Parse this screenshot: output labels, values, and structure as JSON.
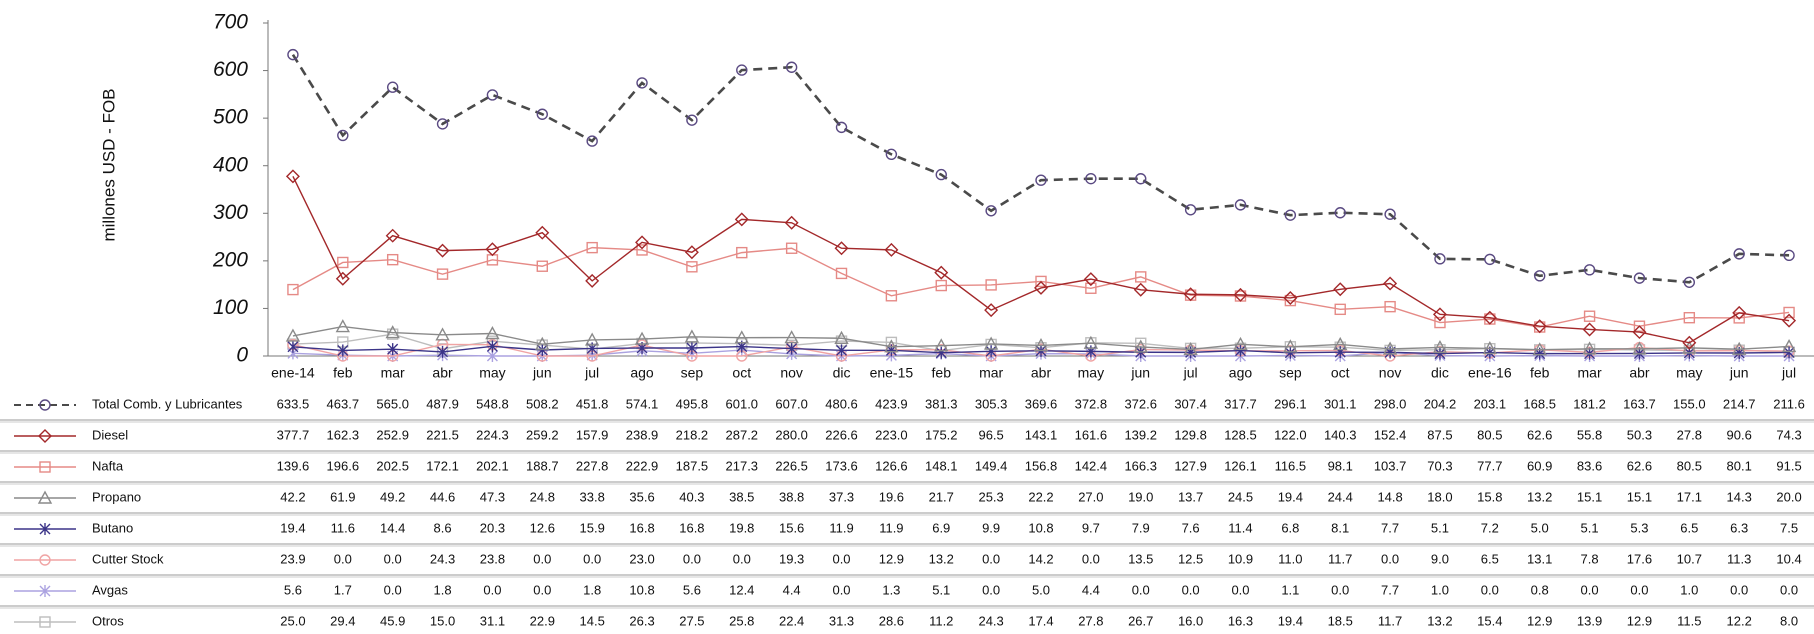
{
  "chart_data": {
    "type": "line",
    "y_label": "millones  USD - FOB",
    "categories": [
      "ene-14",
      "feb",
      "mar",
      "abr",
      "may",
      "jun",
      "jul",
      "ago",
      "sep",
      "oct",
      "nov",
      "dic",
      "ene-15",
      "feb",
      "mar",
      "abr",
      "may",
      "jun",
      "jul",
      "ago",
      "sep",
      "oct",
      "nov",
      "dic",
      "ene-16",
      "feb",
      "mar",
      "abr",
      "may",
      "jun",
      "jul"
    ],
    "ylim": [
      0,
      700
    ],
    "yticks": [
      0,
      100,
      200,
      300,
      400,
      500,
      600,
      700
    ],
    "series": [
      {
        "name": "Total Comb. y Lubricantes",
        "color": "#5a4a82",
        "line_color": "#4a4a4a",
        "dashed": true,
        "marker": "circle",
        "values": [
          633.5,
          463.7,
          565.0,
          487.9,
          548.8,
          508.2,
          451.8,
          574.1,
          495.8,
          601.0,
          607.0,
          480.6,
          423.9,
          381.3,
          305.3,
          369.6,
          372.8,
          372.6,
          307.4,
          317.7,
          296.1,
          301.1,
          298.0,
          204.2,
          203.1,
          168.5,
          181.2,
          163.7,
          155.0,
          214.7,
          211.6
        ],
        "value_labels": [
          "633.5",
          "463.7",
          "565.0",
          "487.9",
          "548.8",
          "508.2",
          "451.8",
          "574.1",
          "495.8",
          "601.0",
          "607.0",
          "480.6",
          "423.9",
          "381.3",
          "305.3",
          "369.6",
          "372.8",
          "372.6",
          "307.4",
          "317.7",
          "296.1",
          "301.1",
          "298.0",
          "204.2",
          "203.1",
          "168.5",
          "181.2",
          "163.7",
          "155.0",
          "214.7",
          "211.6"
        ]
      },
      {
        "name": "Diesel",
        "color": "#a3282a",
        "marker": "diamond",
        "values": [
          377.7,
          162.3,
          252.9,
          221.5,
          224.3,
          259.2,
          157.9,
          238.9,
          218.2,
          287.2,
          280.0,
          226.6,
          223.0,
          175.2,
          96.5,
          143.1,
          161.6,
          139.2,
          129.8,
          128.5,
          122.0,
          140.3,
          152.4,
          87.5,
          80.5,
          62.6,
          55.8,
          50.3,
          27.8,
          90.6,
          74.3
        ],
        "value_labels": [
          "377.7",
          "162.3",
          "252.9",
          "221.5",
          "224.3",
          "259.2",
          "157.9",
          "238.9",
          "218.2",
          "287.2",
          "280.0",
          "226.6",
          "223.0",
          "175.2",
          "96.5",
          "143.1",
          "161.6",
          "139.2",
          "129.8",
          "128.5",
          "122.0",
          "140.3",
          "152.4",
          "87.5",
          "80.5",
          "62.6",
          "55.8",
          "50.3",
          "27.8",
          "90.6",
          "74.3"
        ]
      },
      {
        "name": "Nafta",
        "color": "#e58a86",
        "marker": "square",
        "values": [
          139.6,
          196.6,
          202.5,
          172.1,
          202.1,
          188.7,
          227.8,
          222.9,
          187.5,
          217.3,
          226.5,
          173.6,
          126.6,
          148.1,
          149.4,
          156.8,
          142.4,
          166.3,
          127.9,
          126.1,
          116.5,
          98.1,
          103.7,
          70.3,
          77.7,
          60.9,
          83.6,
          62.6,
          80.5,
          80.1,
          91.5
        ],
        "value_labels": [
          "139.6",
          "196.6",
          "202.5",
          "172.1",
          "202.1",
          "188.7",
          "227.8",
          "222.9",
          "187.5",
          "217.3",
          "226.5",
          "173.6",
          "126.6",
          "148.1",
          "149.4",
          "156.8",
          "142.4",
          "166.3",
          "127.9",
          "126.1",
          "116.5",
          "98.1",
          "103.7",
          "70.3",
          "77.7",
          "60.9",
          "83.6",
          "62.6",
          "80.5",
          "80.1",
          "91.5"
        ]
      },
      {
        "name": "Propano",
        "color": "#8a8a8a",
        "marker": "triangle",
        "values": [
          42.2,
          61.9,
          49.2,
          44.6,
          47.3,
          24.8,
          33.8,
          35.6,
          40.3,
          38.5,
          38.8,
          37.3,
          19.6,
          21.7,
          25.3,
          22.2,
          27.0,
          19.0,
          13.7,
          24.5,
          19.4,
          24.4,
          14.8,
          18.0,
          15.8,
          13.2,
          15.1,
          15.1,
          17.1,
          14.3,
          20.0
        ],
        "value_labels": [
          "42.2",
          "61.9",
          "49.2",
          "44.6",
          "47.3",
          "24.8",
          "33.8",
          "35.6",
          "40.3",
          "38.5",
          "38.8",
          "37.3",
          "19.6",
          "21.7",
          "25.3",
          "22.2",
          "27.0",
          "19.0",
          "13.7",
          "24.5",
          "19.4",
          "24.4",
          "14.8",
          "18.0",
          "15.8",
          "13.2",
          "15.1",
          "15.1",
          "17.1",
          "14.3",
          "20.0"
        ]
      },
      {
        "name": "Butano",
        "color": "#3b3488",
        "marker": "star",
        "values": [
          19.4,
          11.6,
          14.4,
          8.6,
          20.3,
          12.6,
          15.9,
          16.8,
          16.8,
          19.8,
          15.6,
          11.9,
          11.9,
          6.9,
          9.9,
          10.8,
          9.7,
          7.9,
          7.6,
          11.4,
          6.8,
          8.1,
          7.7,
          5.1,
          7.2,
          5.0,
          5.1,
          5.3,
          6.5,
          6.3,
          7.5
        ],
        "value_labels": [
          "19.4",
          "11.6",
          "14.4",
          "8.6",
          "20.3",
          "12.6",
          "15.9",
          "16.8",
          "16.8",
          "19.8",
          "15.6",
          "11.9",
          "11.9",
          "6.9",
          "9.9",
          "10.8",
          "9.7",
          "7.9",
          "7.6",
          "11.4",
          "6.8",
          "8.1",
          "7.7",
          "5.1",
          "7.2",
          "5.0",
          "5.1",
          "5.3",
          "6.5",
          "6.3",
          "7.5"
        ]
      },
      {
        "name": "Cutter Stock",
        "color": "#f0a4a4",
        "marker": "circle",
        "values": [
          23.9,
          0.0,
          0.0,
          24.3,
          23.8,
          0.0,
          0.0,
          23.0,
          0.0,
          0.0,
          19.3,
          0.0,
          12.9,
          13.2,
          0.0,
          14.2,
          0.0,
          13.5,
          12.5,
          10.9,
          11.0,
          11.7,
          0.0,
          9.0,
          6.5,
          13.1,
          7.8,
          17.6,
          10.7,
          11.3,
          10.4
        ],
        "value_labels": [
          "23.9",
          "0.0",
          "0.0",
          "24.3",
          "23.8",
          "0.0",
          "0.0",
          "23.0",
          "0.0",
          "0.0",
          "19.3",
          "0.0",
          "12.9",
          "13.2",
          "0.0",
          "14.2",
          "0.0",
          "13.5",
          "12.5",
          "10.9",
          "11.0",
          "11.7",
          "0.0",
          "9.0",
          "6.5",
          "13.1",
          "7.8",
          "17.6",
          "10.7",
          "11.3",
          "10.4"
        ]
      },
      {
        "name": "Avgas",
        "color": "#aba2e0",
        "marker": "star",
        "values": [
          5.6,
          1.7,
          0.0,
          1.8,
          0.0,
          0.0,
          1.8,
          10.8,
          5.6,
          12.4,
          4.4,
          0.0,
          1.3,
          5.1,
          0.0,
          5.0,
          4.4,
          0.0,
          0.0,
          0.0,
          1.1,
          0.0,
          7.7,
          1.0,
          0.0,
          0.8,
          0.0,
          0.0,
          1.0,
          0.0,
          0.0
        ],
        "value_labels": [
          "5.6",
          "1.7",
          "0.0",
          "1.8",
          "0.0",
          "0.0",
          "1.8",
          "10.8",
          "5.6",
          "12.4",
          "4.4",
          "0.0",
          "1.3",
          "5.1",
          "0.0",
          "5.0",
          "4.4",
          "0.0",
          "0.0",
          "0.0",
          "1.1",
          "0.0",
          "7.7",
          "1.0",
          "0.0",
          "0.8",
          "0.0",
          "0.0",
          "1.0",
          "0.0",
          "0.0"
        ]
      },
      {
        "name": "Otros",
        "color": "#bdbdbd",
        "marker": "square",
        "values": [
          25.0,
          29.4,
          45.9,
          15.0,
          31.1,
          22.9,
          14.5,
          26.3,
          27.5,
          25.8,
          22.4,
          31.3,
          28.6,
          11.2,
          24.3,
          17.4,
          27.8,
          26.7,
          16.0,
          16.3,
          19.4,
          18.5,
          11.7,
          13.2,
          15.4,
          12.9,
          13.9,
          12.9,
          11.5,
          12.2,
          8.0
        ],
        "value_labels": [
          "25.0",
          "29.4",
          "45.9",
          "15.0",
          "31.1",
          "22.9",
          "14.5",
          "26.3",
          "27.5",
          "25.8",
          "22.4",
          "31.3",
          "28.6",
          "11.2",
          "24.3",
          "17.4",
          "27.8",
          "26.7",
          "16.0",
          "16.3",
          "19.4",
          "18.5",
          "11.7",
          "13.2",
          "15.4",
          "12.9",
          "13.9",
          "12.9",
          "11.5",
          "12.2",
          "8.0"
        ]
      }
    ]
  }
}
